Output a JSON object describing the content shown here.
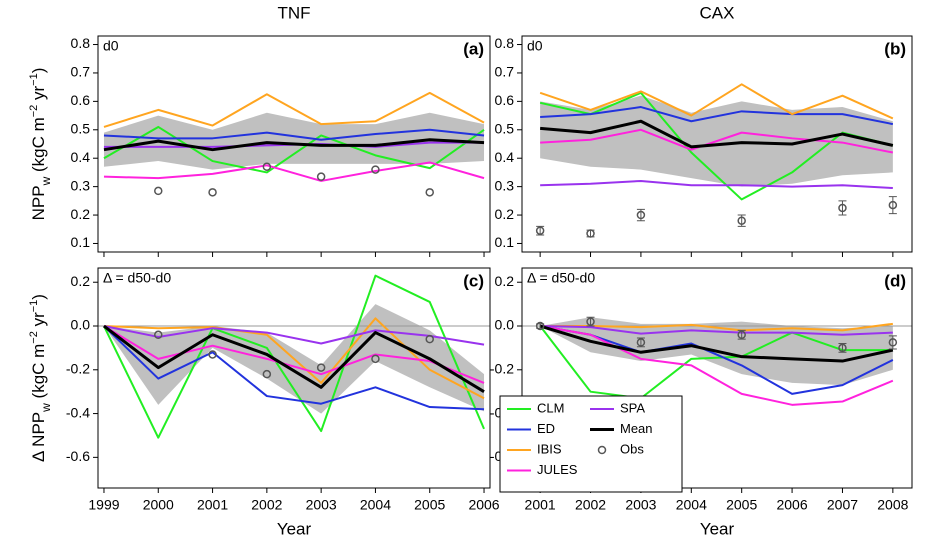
{
  "chart_data": [
    {
      "type": "line",
      "title": "TNF",
      "annotation": "d0",
      "panel_label": "(a)",
      "ylabel_parts": [
        [
          "NPP",
          ""
        ],
        [
          "w",
          "sub"
        ],
        [
          " (kgC m",
          ""
        ],
        [
          "−2",
          "sup"
        ],
        [
          " yr",
          ""
        ],
        [
          "−1",
          "sup"
        ],
        [
          ")",
          ""
        ]
      ],
      "x": [
        1999,
        2000,
        2001,
        2002,
        2003,
        2004,
        2005,
        2006
      ],
      "show_xtick_labels": false,
      "xlim": [
        1998.89,
        2006.11
      ],
      "ylim": [
        0.07,
        0.83
      ],
      "yticks": [
        0.1,
        0.2,
        0.3,
        0.4,
        0.5,
        0.6,
        0.7,
        0.8
      ],
      "band": {
        "color": "#c0c0c0",
        "lower": [
          0.37,
          0.39,
          0.36,
          0.38,
          0.38,
          0.38,
          0.38,
          0.39
        ],
        "upper": [
          0.49,
          0.55,
          0.5,
          0.56,
          0.52,
          0.52,
          0.56,
          0.52
        ]
      },
      "series": [
        {
          "color": "#22ee22",
          "values": [
            0.4,
            0.51,
            0.39,
            0.35,
            0.48,
            0.41,
            0.365,
            0.5
          ]
        },
        {
          "color": "#2233dd",
          "values": [
            0.48,
            0.47,
            0.47,
            0.49,
            0.465,
            0.485,
            0.5,
            0.48
          ]
        },
        {
          "color": "#ffa520",
          "values": [
            0.51,
            0.57,
            0.515,
            0.625,
            0.52,
            0.53,
            0.63,
            0.525
          ]
        },
        {
          "color": "#ff22dd",
          "values": [
            0.335,
            0.33,
            0.345,
            0.375,
            0.32,
            0.355,
            0.385,
            0.33
          ]
        },
        {
          "color": "#9933ee",
          "values": [
            0.44,
            0.44,
            0.44,
            0.445,
            0.45,
            0.44,
            0.455,
            0.455
          ]
        },
        {
          "color": "#000000",
          "width": 3,
          "values": [
            0.43,
            0.46,
            0.43,
            0.455,
            0.445,
            0.445,
            0.465,
            0.455
          ]
        }
      ],
      "obs": {
        "color": "#555555",
        "values": [
          null,
          0.285,
          0.28,
          0.37,
          0.335,
          0.36,
          0.28,
          null
        ]
      }
    },
    {
      "type": "line",
      "title": "CAX",
      "annotation": "d0",
      "panel_label": "(b)",
      "x": [
        2001,
        2002,
        2003,
        2004,
        2005,
        2006,
        2007,
        2008
      ],
      "show_xtick_labels": false,
      "xlim": [
        2000.64,
        2008.38
      ],
      "ylim": [
        0.07,
        0.83
      ],
      "yticks": [
        0.1,
        0.2,
        0.3,
        0.4,
        0.5,
        0.6,
        0.7,
        0.8
      ],
      "band": {
        "color": "#c0c0c0",
        "lower": [
          0.4,
          0.37,
          0.36,
          0.33,
          0.3,
          0.31,
          0.34,
          0.35
        ],
        "upper": [
          0.6,
          0.57,
          0.62,
          0.56,
          0.6,
          0.57,
          0.58,
          0.53
        ]
      },
      "series": [
        {
          "color": "#22ee22",
          "values": [
            0.595,
            0.555,
            0.63,
            0.42,
            0.255,
            0.35,
            0.49,
            0.445
          ]
        },
        {
          "color": "#2233dd",
          "values": [
            0.545,
            0.555,
            0.58,
            0.53,
            0.565,
            0.555,
            0.555,
            0.52
          ]
        },
        {
          "color": "#ffa520",
          "values": [
            0.63,
            0.57,
            0.635,
            0.55,
            0.66,
            0.555,
            0.62,
            0.54
          ]
        },
        {
          "color": "#ff22dd",
          "values": [
            0.455,
            0.465,
            0.5,
            0.43,
            0.49,
            0.47,
            0.455,
            0.42
          ]
        },
        {
          "color": "#9933ee",
          "values": [
            0.305,
            0.31,
            0.32,
            0.305,
            0.305,
            0.3,
            0.305,
            0.295
          ]
        },
        {
          "color": "#000000",
          "width": 3,
          "values": [
            0.505,
            0.49,
            0.53,
            0.44,
            0.455,
            0.45,
            0.485,
            0.445
          ]
        }
      ],
      "obs": {
        "color": "#555555",
        "values": [
          0.145,
          0.135,
          0.2,
          null,
          0.18,
          null,
          0.225,
          0.235
        ],
        "errors": [
          0.015,
          0.012,
          0.02,
          null,
          0.02,
          null,
          0.025,
          0.03
        ]
      }
    },
    {
      "type": "line",
      "annotation": "Δ = d50-d0",
      "panel_label": "(c)",
      "xlabel": "Year",
      "ylabel_parts": [
        [
          "Δ NPP",
          ""
        ],
        [
          "w",
          "sub"
        ],
        [
          " (kgC m",
          ""
        ],
        [
          "−2",
          "sup"
        ],
        [
          " yr",
          ""
        ],
        [
          "−1",
          "sup"
        ],
        [
          ")",
          ""
        ]
      ],
      "x": [
        1999,
        2000,
        2001,
        2002,
        2003,
        2004,
        2005,
        2006
      ],
      "show_xtick_labels": true,
      "xlim": [
        1998.89,
        2006.11
      ],
      "ylim": [
        -0.74,
        0.265
      ],
      "yticks": [
        -0.6,
        -0.4,
        -0.2,
        {
          "value": 0,
          "label": "0.0"
        },
        0.2
      ],
      "zero_line": true,
      "band": {
        "color": "#c0c0c0",
        "lower": [
          0,
          -0.36,
          -0.1,
          -0.24,
          -0.4,
          -0.16,
          -0.28,
          -0.39
        ],
        "upper": [
          0,
          -0.03,
          0.0,
          -0.03,
          -0.18,
          0.1,
          -0.02,
          -0.22
        ]
      },
      "series": [
        {
          "color": "#22ee22",
          "values": [
            0,
            -0.51,
            -0.01,
            -0.1,
            -0.48,
            0.23,
            0.11,
            -0.47
          ]
        },
        {
          "color": "#2233dd",
          "values": [
            0,
            -0.24,
            -0.12,
            -0.32,
            -0.355,
            -0.28,
            -0.37,
            -0.38
          ]
        },
        {
          "color": "#ffa520",
          "values": [
            0,
            -0.01,
            -0.005,
            -0.04,
            -0.26,
            0.035,
            -0.2,
            -0.33
          ]
        },
        {
          "color": "#ff22dd",
          "values": [
            0,
            -0.15,
            -0.09,
            -0.15,
            -0.22,
            -0.13,
            -0.16,
            -0.26
          ]
        },
        {
          "color": "#9933ee",
          "values": [
            0,
            -0.05,
            -0.01,
            -0.03,
            -0.08,
            -0.02,
            -0.045,
            -0.085
          ]
        },
        {
          "color": "#000000",
          "width": 3,
          "values": [
            0,
            -0.19,
            -0.04,
            -0.13,
            -0.28,
            -0.03,
            -0.15,
            -0.3
          ]
        }
      ],
      "obs": {
        "color": "#555555",
        "values": [
          null,
          -0.04,
          -0.13,
          -0.22,
          -0.19,
          -0.15,
          -0.06,
          null
        ]
      }
    },
    {
      "type": "line",
      "annotation": "Δ = d50-d0",
      "panel_label": "(d)",
      "xlabel": "Year",
      "x": [
        2001,
        2002,
        2003,
        2004,
        2005,
        2006,
        2007,
        2008
      ],
      "show_xtick_labels": true,
      "xlim": [
        2000.64,
        2008.38
      ],
      "ylim": [
        -0.74,
        0.265
      ],
      "yticks": [
        -0.6,
        -0.4,
        -0.2,
        {
          "value": 0,
          "label": "0.0"
        },
        0.2
      ],
      "zero_line": true,
      "legend": "lower left",
      "band": {
        "color": "#c0c0c0",
        "lower": [
          0,
          -0.12,
          -0.16,
          -0.13,
          -0.22,
          -0.26,
          -0.27,
          -0.2
        ],
        "upper": [
          0,
          0.04,
          0.01,
          0.01,
          0.02,
          0.0,
          -0.01,
          0.0
        ]
      },
      "series": [
        {
          "name": "CLM",
          "color": "#22ee22",
          "values": [
            0,
            -0.3,
            -0.33,
            -0.15,
            -0.14,
            -0.03,
            -0.11,
            -0.11
          ]
        },
        {
          "name": "ED",
          "color": "#2233dd",
          "values": [
            0,
            -0.04,
            -0.12,
            -0.08,
            -0.18,
            -0.31,
            -0.27,
            -0.155
          ]
        },
        {
          "name": "IBIS",
          "color": "#ffa520",
          "values": [
            0,
            0.0,
            -0.005,
            0.005,
            -0.02,
            -0.01,
            -0.02,
            0.01
          ]
        },
        {
          "name": "JULES",
          "color": "#ff22dd",
          "values": [
            0,
            -0.04,
            -0.15,
            -0.18,
            -0.31,
            -0.36,
            -0.345,
            -0.25
          ]
        },
        {
          "name": "SPA",
          "color": "#9933ee",
          "values": [
            0,
            -0.005,
            -0.035,
            -0.02,
            -0.03,
            -0.03,
            -0.04,
            -0.03
          ]
        },
        {
          "name": "Mean",
          "color": "#000000",
          "width": 3,
          "values": [
            0,
            -0.07,
            -0.12,
            -0.09,
            -0.14,
            -0.15,
            -0.16,
            -0.11
          ]
        }
      ],
      "obs": {
        "name": "Obs",
        "color": "#555555",
        "values": [
          0,
          0.02,
          -0.075,
          null,
          -0.04,
          null,
          -0.1,
          -0.075
        ],
        "errors": [
          0.01,
          0.02,
          0.02,
          null,
          0.02,
          null,
          0.02,
          0.03
        ]
      }
    }
  ]
}
